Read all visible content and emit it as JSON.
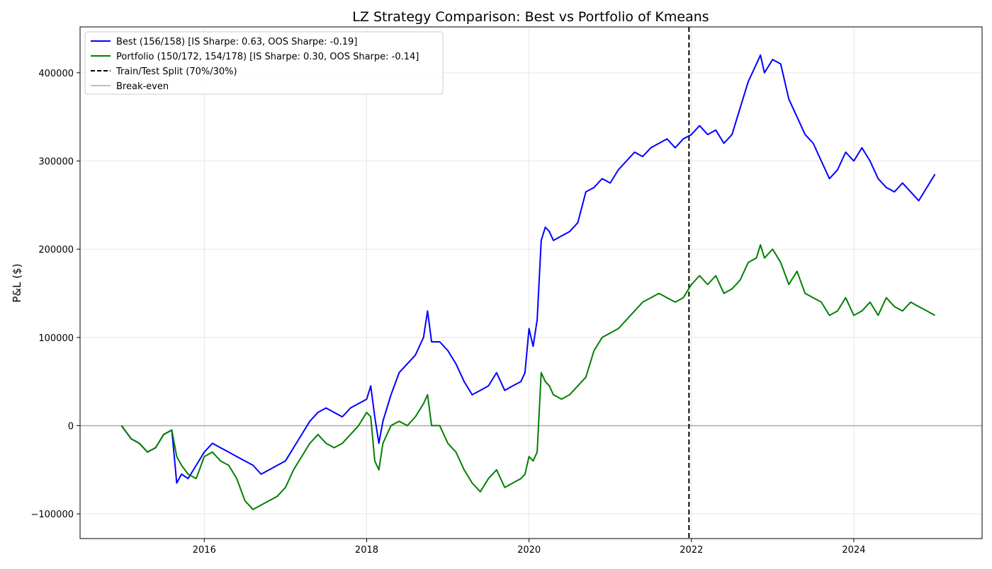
{
  "chart_data": {
    "type": "line",
    "title": "LZ Strategy Comparison: Best vs Portfolio of Kmeans",
    "xlabel": "",
    "ylabel": "P&L ($)",
    "xlim": [
      2014.47,
      2025.58
    ],
    "ylim": [
      -128000,
      452000
    ],
    "x_ticks": [
      2016,
      2018,
      2020,
      2022,
      2024
    ],
    "x_tick_labels": [
      "2016",
      "2018",
      "2020",
      "2022",
      "2024"
    ],
    "y_ticks": [
      -100000,
      0,
      100000,
      200000,
      300000,
      400000
    ],
    "y_tick_labels": [
      "−100000",
      "0",
      "100000",
      "200000",
      "300000",
      "400000"
    ],
    "grid": true,
    "legend_position": "upper left",
    "split_x": 2021.97,
    "series": [
      {
        "name": "Best (156/158) [IS Sharpe: 0.63, OOS Sharpe: -0.19]",
        "color": "#0000ff",
        "style": "solid",
        "x": [
          2014.98,
          2015.1,
          2015.2,
          2015.3,
          2015.4,
          2015.5,
          2015.6,
          2015.66,
          2015.72,
          2015.8,
          2015.9,
          2016.0,
          2016.1,
          2016.2,
          2016.3,
          2016.4,
          2016.5,
          2016.6,
          2016.7,
          2016.8,
          2016.9,
          2017.0,
          2017.1,
          2017.2,
          2017.3,
          2017.4,
          2017.5,
          2017.6,
          2017.7,
          2017.8,
          2017.9,
          2018.0,
          2018.05,
          2018.1,
          2018.15,
          2018.2,
          2018.3,
          2018.4,
          2018.5,
          2018.6,
          2018.7,
          2018.75,
          2018.8,
          2018.9,
          2019.0,
          2019.1,
          2019.2,
          2019.3,
          2019.4,
          2019.5,
          2019.6,
          2019.7,
          2019.8,
          2019.9,
          2019.95,
          2020.0,
          2020.05,
          2020.1,
          2020.15,
          2020.2,
          2020.25,
          2020.3,
          2020.4,
          2020.5,
          2020.6,
          2020.7,
          2020.8,
          2020.9,
          2021.0,
          2021.1,
          2021.2,
          2021.3,
          2021.4,
          2021.5,
          2021.6,
          2021.7,
          2021.8,
          2021.9,
          2022.0,
          2022.1,
          2022.2,
          2022.3,
          2022.4,
          2022.5,
          2022.6,
          2022.7,
          2022.8,
          2022.85,
          2022.9,
          2023.0,
          2023.1,
          2023.2,
          2023.3,
          2023.4,
          2023.5,
          2023.6,
          2023.7,
          2023.8,
          2023.9,
          2024.0,
          2024.1,
          2024.2,
          2024.3,
          2024.4,
          2024.5,
          2024.6,
          2024.7,
          2024.8,
          2024.9,
          2025.0
        ],
        "y": [
          0,
          -15000,
          -20000,
          -30000,
          -25000,
          -10000,
          -5000,
          -65000,
          -55000,
          -60000,
          -45000,
          -30000,
          -20000,
          -25000,
          -30000,
          -35000,
          -40000,
          -45000,
          -55000,
          -50000,
          -45000,
          -40000,
          -25000,
          -10000,
          5000,
          15000,
          20000,
          15000,
          10000,
          20000,
          25000,
          30000,
          45000,
          10000,
          -20000,
          5000,
          35000,
          60000,
          70000,
          80000,
          100000,
          130000,
          95000,
          95000,
          85000,
          70000,
          50000,
          35000,
          40000,
          45000,
          60000,
          40000,
          45000,
          50000,
          60000,
          110000,
          90000,
          120000,
          210000,
          225000,
          220000,
          210000,
          215000,
          220000,
          230000,
          265000,
          270000,
          280000,
          275000,
          290000,
          300000,
          310000,
          305000,
          315000,
          320000,
          325000,
          315000,
          325000,
          330000,
          340000,
          330000,
          335000,
          320000,
          330000,
          360000,
          390000,
          410000,
          420000,
          400000,
          415000,
          410000,
          370000,
          350000,
          330000,
          320000,
          300000,
          280000,
          290000,
          310000,
          300000,
          315000,
          300000,
          280000,
          270000,
          265000,
          275000,
          265000,
          255000,
          270000,
          285000
        ]
      },
      {
        "name": "Portfolio (150/172, 154/178) [IS Sharpe: 0.30, OOS Sharpe: -0.14]",
        "color": "#008000",
        "style": "solid",
        "x": [
          2014.98,
          2015.1,
          2015.2,
          2015.3,
          2015.4,
          2015.5,
          2015.6,
          2015.66,
          2015.72,
          2015.8,
          2015.9,
          2016.0,
          2016.1,
          2016.2,
          2016.3,
          2016.4,
          2016.5,
          2016.6,
          2016.7,
          2016.8,
          2016.9,
          2017.0,
          2017.1,
          2017.2,
          2017.3,
          2017.4,
          2017.5,
          2017.6,
          2017.7,
          2017.8,
          2017.9,
          2018.0,
          2018.05,
          2018.1,
          2018.15,
          2018.2,
          2018.3,
          2018.4,
          2018.5,
          2018.6,
          2018.7,
          2018.75,
          2018.8,
          2018.9,
          2019.0,
          2019.1,
          2019.2,
          2019.3,
          2019.4,
          2019.5,
          2019.6,
          2019.7,
          2019.8,
          2019.9,
          2019.95,
          2020.0,
          2020.05,
          2020.1,
          2020.15,
          2020.2,
          2020.25,
          2020.3,
          2020.4,
          2020.5,
          2020.6,
          2020.7,
          2020.8,
          2020.9,
          2021.0,
          2021.1,
          2021.2,
          2021.3,
          2021.4,
          2021.5,
          2021.6,
          2021.7,
          2021.8,
          2021.9,
          2022.0,
          2022.1,
          2022.2,
          2022.3,
          2022.4,
          2022.5,
          2022.6,
          2022.7,
          2022.8,
          2022.85,
          2022.9,
          2023.0,
          2023.1,
          2023.2,
          2023.3,
          2023.4,
          2023.5,
          2023.6,
          2023.7,
          2023.8,
          2023.9,
          2024.0,
          2024.1,
          2024.2,
          2024.3,
          2024.4,
          2024.5,
          2024.6,
          2024.7,
          2024.8,
          2024.9,
          2025.0
        ],
        "y": [
          0,
          -15000,
          -20000,
          -30000,
          -25000,
          -10000,
          -5000,
          -35000,
          -45000,
          -55000,
          -60000,
          -35000,
          -30000,
          -40000,
          -45000,
          -60000,
          -85000,
          -95000,
          -90000,
          -85000,
          -80000,
          -70000,
          -50000,
          -35000,
          -20000,
          -10000,
          -20000,
          -25000,
          -20000,
          -10000,
          0,
          15000,
          10000,
          -40000,
          -50000,
          -20000,
          0,
          5000,
          0,
          10000,
          25000,
          35000,
          0,
          0,
          -20000,
          -30000,
          -50000,
          -65000,
          -75000,
          -60000,
          -50000,
          -70000,
          -65000,
          -60000,
          -55000,
          -35000,
          -40000,
          -30000,
          60000,
          50000,
          45000,
          35000,
          30000,
          35000,
          45000,
          55000,
          85000,
          100000,
          105000,
          110000,
          120000,
          130000,
          140000,
          145000,
          150000,
          145000,
          140000,
          145000,
          160000,
          170000,
          160000,
          170000,
          150000,
          155000,
          165000,
          185000,
          190000,
          205000,
          190000,
          200000,
          185000,
          160000,
          175000,
          150000,
          145000,
          140000,
          125000,
          130000,
          145000,
          125000,
          130000,
          140000,
          125000,
          145000,
          135000,
          130000,
          140000,
          135000,
          130000,
          125000
        ]
      },
      {
        "name": "Train/Test Split (70%/30%)",
        "color": "#000000",
        "style": "dashed"
      },
      {
        "name": "Break-even",
        "color": "#aaaaaa",
        "style": "solid"
      }
    ]
  }
}
